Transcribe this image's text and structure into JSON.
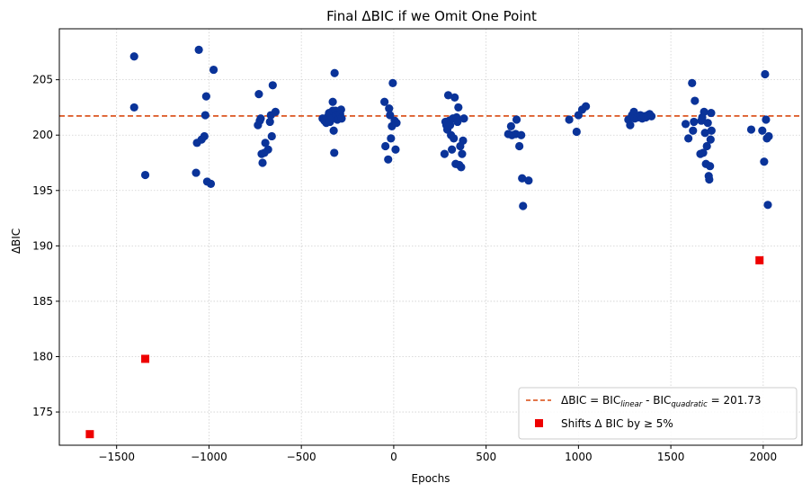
{
  "chart_data": {
    "type": "scatter",
    "title": "Final ΔBIC if we Omit One Point",
    "xlabel": "Epochs",
    "ylabel": "ΔBIC",
    "xlim": [
      -1810,
      2210
    ],
    "ylim": [
      172,
      209.6
    ],
    "xticks": [
      -1500,
      -1000,
      -500,
      0,
      500,
      1000,
      1500,
      2000
    ],
    "xtick_labels": [
      "−1500",
      "−1000",
      "−500",
      "0",
      "500",
      "1000",
      "1500",
      "2000"
    ],
    "yticks": [
      175,
      180,
      185,
      190,
      195,
      200,
      205
    ],
    "ytick_labels": [
      "175",
      "180",
      "185",
      "190",
      "195",
      "200",
      "205"
    ],
    "grid": true,
    "legend_position": "lower-right",
    "hline": {
      "y": 201.73,
      "color": "#d9480f",
      "label_main": "ΔBIC = BIC",
      "label_sub1": "linear",
      "label_mid": " - BIC",
      "label_sub2": "quadratic",
      "label_end": " = 201.73"
    },
    "series": [
      {
        "color": "#0a3399",
        "marker": "circle",
        "points": [
          [
            -1405,
            207.1
          ],
          [
            -1405,
            202.5
          ],
          [
            -1345,
            196.4
          ],
          [
            -1055,
            207.7
          ],
          [
            -1070,
            196.6
          ],
          [
            -1065,
            199.3
          ],
          [
            -1040,
            199.6
          ],
          [
            -1025,
            199.9
          ],
          [
            -1020,
            201.8
          ],
          [
            -1015,
            203.5
          ],
          [
            -1010,
            195.8
          ],
          [
            -990,
            195.6
          ],
          [
            -975,
            205.9
          ],
          [
            -730,
            203.7
          ],
          [
            -735,
            200.9
          ],
          [
            -725,
            201.3
          ],
          [
            -720,
            201.5
          ],
          [
            -715,
            198.3
          ],
          [
            -710,
            197.5
          ],
          [
            -700,
            198.4
          ],
          [
            -695,
            199.3
          ],
          [
            -680,
            198.7
          ],
          [
            -670,
            201.2
          ],
          [
            -665,
            201.8
          ],
          [
            -660,
            199.9
          ],
          [
            -655,
            204.5
          ],
          [
            -640,
            202.1
          ],
          [
            -385,
            201.5
          ],
          [
            -375,
            201.3
          ],
          [
            -365,
            201.1
          ],
          [
            -355,
            201.7
          ],
          [
            -350,
            202.0
          ],
          [
            -345,
            201.2
          ],
          [
            -340,
            201.9
          ],
          [
            -335,
            201.5
          ],
          [
            -330,
            203.0
          ],
          [
            -330,
            202.2
          ],
          [
            -325,
            200.4
          ],
          [
            -322,
            198.4
          ],
          [
            -320,
            205.6
          ],
          [
            -315,
            202.2
          ],
          [
            -310,
            201.8
          ],
          [
            -305,
            201.4
          ],
          [
            -300,
            201.8
          ],
          [
            -295,
            201.5
          ],
          [
            -290,
            201.9
          ],
          [
            -285,
            202.3
          ],
          [
            -282,
            201.5
          ],
          [
            -50,
            203.0
          ],
          [
            -45,
            199.0
          ],
          [
            -30,
            197.8
          ],
          [
            -25,
            202.4
          ],
          [
            -20,
            201.8
          ],
          [
            -15,
            199.7
          ],
          [
            -10,
            200.8
          ],
          [
            -5,
            204.7
          ],
          [
            5,
            201.3
          ],
          [
            10,
            198.7
          ],
          [
            15,
            201.1
          ],
          [
            275,
            198.3
          ],
          [
            280,
            201.2
          ],
          [
            285,
            200.9
          ],
          [
            290,
            200.5
          ],
          [
            295,
            203.6
          ],
          [
            300,
            201.3
          ],
          [
            305,
            200.9
          ],
          [
            310,
            200.0
          ],
          [
            315,
            198.7
          ],
          [
            320,
            201.5
          ],
          [
            325,
            199.7
          ],
          [
            330,
            203.4
          ],
          [
            335,
            197.4
          ],
          [
            340,
            201.6
          ],
          [
            345,
            201.2
          ],
          [
            350,
            202.5
          ],
          [
            355,
            197.3
          ],
          [
            360,
            199.0
          ],
          [
            365,
            197.1
          ],
          [
            370,
            198.3
          ],
          [
            375,
            199.5
          ],
          [
            380,
            201.5
          ],
          [
            620,
            200.1
          ],
          [
            635,
            200.8
          ],
          [
            640,
            200.0
          ],
          [
            660,
            200.1
          ],
          [
            665,
            201.4
          ],
          [
            680,
            199.0
          ],
          [
            690,
            200.0
          ],
          [
            695,
            196.1
          ],
          [
            700,
            193.6
          ],
          [
            730,
            195.9
          ],
          [
            950,
            201.4
          ],
          [
            990,
            200.3
          ],
          [
            1000,
            201.8
          ],
          [
            1020,
            202.3
          ],
          [
            1040,
            202.6
          ],
          [
            1270,
            201.4
          ],
          [
            1280,
            200.9
          ],
          [
            1290,
            201.8
          ],
          [
            1300,
            202.1
          ],
          [
            1305,
            201.5
          ],
          [
            1320,
            201.6
          ],
          [
            1335,
            201.8
          ],
          [
            1345,
            201.5
          ],
          [
            1355,
            201.7
          ],
          [
            1365,
            201.6
          ],
          [
            1375,
            201.8
          ],
          [
            1385,
            201.9
          ],
          [
            1395,
            201.7
          ],
          [
            1580,
            201.0
          ],
          [
            1595,
            199.7
          ],
          [
            1615,
            204.7
          ],
          [
            1620,
            200.4
          ],
          [
            1625,
            201.2
          ],
          [
            1630,
            203.1
          ],
          [
            1660,
            198.3
          ],
          [
            1665,
            201.3
          ],
          [
            1670,
            201.6
          ],
          [
            1675,
            198.4
          ],
          [
            1680,
            202.1
          ],
          [
            1685,
            200.2
          ],
          [
            1690,
            197.4
          ],
          [
            1695,
            199.0
          ],
          [
            1700,
            201.1
          ],
          [
            1705,
            196.3
          ],
          [
            1708,
            196.0
          ],
          [
            1712,
            197.2
          ],
          [
            1715,
            199.6
          ],
          [
            1718,
            202.0
          ],
          [
            1720,
            200.4
          ],
          [
            1935,
            200.5
          ],
          [
            1995,
            200.4
          ],
          [
            2005,
            197.6
          ],
          [
            2010,
            205.5
          ],
          [
            2015,
            201.4
          ],
          [
            2020,
            199.7
          ],
          [
            2025,
            193.7
          ],
          [
            2030,
            199.9
          ]
        ]
      },
      {
        "name": "Shifts Δ BIC by ≥ 5%",
        "color": "#ee0000",
        "marker": "square",
        "points": [
          [
            -1645,
            173.0
          ],
          [
            -1345,
            179.8
          ],
          [
            1980,
            188.7
          ]
        ]
      }
    ]
  }
}
